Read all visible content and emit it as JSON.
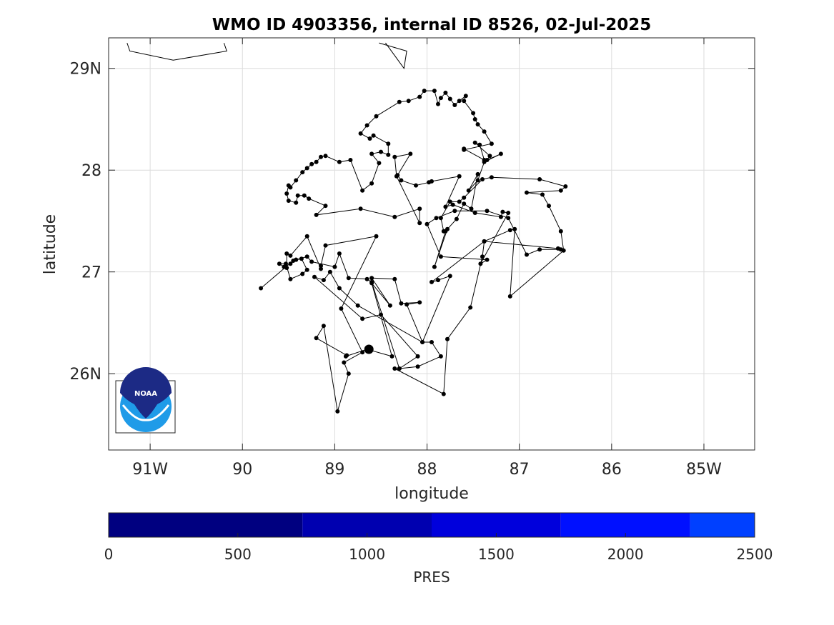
{
  "chart_data": {
    "type": "scatter",
    "title": "WMO ID 4903356, internal ID 8526, 02-Jul-2025",
    "xlabel": "longitude",
    "ylabel": "latitude",
    "xlim": [
      -91.45,
      -84.45
    ],
    "ylim": [
      25.25,
      29.3
    ],
    "grid": true,
    "x_ticks": [
      {
        "value": -91,
        "label": "91W"
      },
      {
        "value": -90,
        "label": "90"
      },
      {
        "value": -89,
        "label": "89"
      },
      {
        "value": -88,
        "label": "88"
      },
      {
        "value": -87,
        "label": "87"
      },
      {
        "value": -86,
        "label": "86"
      },
      {
        "value": -85,
        "label": "85W"
      }
    ],
    "y_ticks": [
      {
        "value": 26,
        "label": "26N"
      },
      {
        "value": 27,
        "label": "27"
      },
      {
        "value": 28,
        "label": "28"
      },
      {
        "value": 29,
        "label": "29N"
      }
    ],
    "coastlines": [
      [
        [
          -90.2,
          29.25
        ],
        [
          -90.17,
          29.17
        ],
        [
          -90.75,
          29.08
        ],
        [
          -91.22,
          29.17
        ],
        [
          -91.25,
          29.25
        ]
      ],
      [
        [
          -88.52,
          29.25
        ],
        [
          -88.22,
          29.17
        ],
        [
          -88.25,
          29.0
        ],
        [
          -88.45,
          29.25
        ]
      ]
    ],
    "series": [
      {
        "marker_color": "#000000",
        "points": [
          [
            -89.8,
            26.84
          ],
          [
            -89.45,
            27.11
          ],
          [
            -89.42,
            27.12
          ],
          [
            -89.36,
            27.13
          ],
          [
            -89.3,
            27.02
          ],
          [
            -89.35,
            26.98
          ],
          [
            -89.48,
            26.93
          ],
          [
            -89.53,
            27.08
          ],
          [
            -89.6,
            27.08
          ],
          [
            -89.55,
            27.05
          ],
          [
            -89.52,
            27.04
          ],
          [
            -89.52,
            27.18
          ],
          [
            -89.48,
            27.16
          ],
          [
            -89.3,
            27.35
          ],
          [
            -89.15,
            27.03
          ],
          [
            -89.15,
            27.06
          ],
          [
            -89.1,
            27.26
          ],
          [
            -88.55,
            27.35
          ],
          [
            -88.93,
            26.64
          ],
          [
            -88.7,
            26.21
          ],
          [
            -88.9,
            26.11
          ],
          [
            -88.85,
            26.0
          ],
          [
            -88.97,
            25.63
          ],
          [
            -89.12,
            26.47
          ],
          [
            -89.2,
            26.35
          ],
          [
            -88.87,
            26.18
          ],
          [
            -88.88,
            26.17
          ],
          [
            -88.65,
            26.24
          ],
          [
            -88.38,
            26.17
          ],
          [
            -88.6,
            26.89
          ],
          [
            -88.4,
            26.67
          ],
          [
            -88.6,
            26.94
          ],
          [
            -88.35,
            26.93
          ],
          [
            -88.28,
            26.69
          ],
          [
            -88.08,
            26.7
          ],
          [
            -88.22,
            26.68
          ],
          [
            -88.05,
            26.31
          ],
          [
            -87.95,
            26.31
          ],
          [
            -87.85,
            26.17
          ],
          [
            -88.1,
            26.07
          ],
          [
            -88.3,
            26.05
          ],
          [
            -88.35,
            26.05
          ],
          [
            -87.82,
            25.8
          ],
          [
            -87.78,
            26.34
          ],
          [
            -87.53,
            26.65
          ],
          [
            -87.4,
            27.15
          ],
          [
            -87.38,
            27.3
          ],
          [
            -87.1,
            27.41
          ],
          [
            -87.05,
            27.42
          ],
          [
            -87.1,
            26.76
          ],
          [
            -86.52,
            27.21
          ],
          [
            -86.55,
            27.4
          ],
          [
            -86.68,
            27.65
          ],
          [
            -86.75,
            27.76
          ],
          [
            -86.92,
            27.78
          ],
          [
            -86.55,
            27.8
          ],
          [
            -86.5,
            27.84
          ],
          [
            -86.78,
            27.91
          ],
          [
            -87.3,
            27.93
          ],
          [
            -87.4,
            27.91
          ],
          [
            -87.6,
            27.73
          ],
          [
            -87.65,
            27.69
          ],
          [
            -87.75,
            27.69
          ],
          [
            -87.85,
            27.53
          ],
          [
            -87.82,
            27.4
          ],
          [
            -87.78,
            27.42
          ],
          [
            -87.92,
            27.05
          ],
          [
            -87.8,
            27.4
          ],
          [
            -87.68,
            27.52
          ],
          [
            -87.6,
            27.67
          ],
          [
            -87.52,
            27.62
          ],
          [
            -87.45,
            27.96
          ],
          [
            -87.55,
            27.8
          ],
          [
            -87.45,
            27.9
          ],
          [
            -87.38,
            28.08
          ],
          [
            -87.2,
            28.16
          ],
          [
            -87.35,
            28.1
          ],
          [
            -87.32,
            28.14
          ],
          [
            -87.48,
            28.27
          ],
          [
            -87.43,
            28.25
          ],
          [
            -87.38,
            28.1
          ],
          [
            -87.6,
            28.21
          ],
          [
            -87.6,
            28.2
          ],
          [
            -87.3,
            28.26
          ],
          [
            -87.38,
            28.38
          ],
          [
            -87.45,
            28.45
          ],
          [
            -87.48,
            28.5
          ],
          [
            -87.5,
            28.56
          ],
          [
            -87.6,
            28.68
          ],
          [
            -87.58,
            28.73
          ],
          [
            -87.65,
            28.68
          ],
          [
            -87.7,
            28.64
          ],
          [
            -87.75,
            28.7
          ],
          [
            -87.8,
            28.76
          ],
          [
            -87.85,
            28.71
          ],
          [
            -87.88,
            28.65
          ],
          [
            -87.92,
            28.78
          ],
          [
            -88.03,
            28.78
          ],
          [
            -88.08,
            28.72
          ],
          [
            -88.2,
            28.68
          ],
          [
            -88.3,
            28.67
          ],
          [
            -88.55,
            28.53
          ],
          [
            -88.65,
            28.44
          ],
          [
            -88.72,
            28.36
          ],
          [
            -88.62,
            28.31
          ],
          [
            -88.58,
            28.34
          ],
          [
            -88.42,
            28.26
          ],
          [
            -88.42,
            28.15
          ],
          [
            -88.5,
            28.18
          ],
          [
            -88.6,
            28.16
          ],
          [
            -88.52,
            28.07
          ],
          [
            -88.6,
            27.87
          ],
          [
            -88.7,
            27.8
          ],
          [
            -88.83,
            28.1
          ],
          [
            -88.95,
            28.08
          ],
          [
            -89.1,
            28.14
          ],
          [
            -89.15,
            28.13
          ],
          [
            -89.2,
            28.08
          ],
          [
            -89.25,
            28.06
          ],
          [
            -89.3,
            28.02
          ],
          [
            -89.35,
            27.98
          ],
          [
            -89.42,
            27.9
          ],
          [
            -89.48,
            27.83
          ],
          [
            -89.5,
            27.85
          ],
          [
            -89.52,
            27.77
          ],
          [
            -89.5,
            27.7
          ],
          [
            -89.42,
            27.68
          ],
          [
            -89.4,
            27.75
          ],
          [
            -89.33,
            27.75
          ],
          [
            -89.28,
            27.72
          ],
          [
            -89.1,
            27.65
          ],
          [
            -89.2,
            27.56
          ],
          [
            -88.72,
            27.62
          ],
          [
            -88.35,
            27.54
          ],
          [
            -88.08,
            27.62
          ],
          [
            -88.08,
            27.48
          ],
          [
            -88.33,
            27.94
          ],
          [
            -88.35,
            28.13
          ],
          [
            -88.18,
            28.16
          ],
          [
            -88.32,
            27.95
          ],
          [
            -88.28,
            27.9
          ],
          [
            -88.12,
            27.85
          ],
          [
            -87.98,
            27.88
          ],
          [
            -87.95,
            27.89
          ],
          [
            -87.65,
            27.94
          ],
          [
            -87.8,
            27.64
          ],
          [
            -87.72,
            27.66
          ],
          [
            -87.48,
            27.58
          ],
          [
            -87.2,
            27.54
          ],
          [
            -87.18,
            27.59
          ],
          [
            -87.12,
            27.58
          ],
          [
            -87.42,
            27.08
          ],
          [
            -87.35,
            27.12
          ],
          [
            -87.85,
            27.15
          ],
          [
            -88.0,
            27.47
          ],
          [
            -87.9,
            27.53
          ],
          [
            -87.7,
            27.6
          ],
          [
            -87.35,
            27.6
          ],
          [
            -87.12,
            27.53
          ],
          [
            -86.92,
            27.17
          ],
          [
            -86.78,
            27.22
          ],
          [
            -86.55,
            27.22
          ],
          [
            -86.58,
            27.23
          ],
          [
            -87.38,
            27.3
          ],
          [
            -87.95,
            26.9
          ],
          [
            -87.88,
            26.92
          ],
          [
            -87.75,
            26.96
          ],
          [
            -88.05,
            26.31
          ],
          [
            -88.75,
            26.67
          ],
          [
            -88.95,
            26.84
          ],
          [
            -89.05,
            27.0
          ],
          [
            -89.12,
            26.92
          ],
          [
            -89.22,
            26.95
          ],
          [
            -88.7,
            26.54
          ],
          [
            -88.5,
            26.58
          ],
          [
            -88.1,
            26.17
          ],
          [
            -88.3,
            26.05
          ],
          [
            -88.6,
            26.9
          ],
          [
            -88.65,
            26.93
          ],
          [
            -88.85,
            26.94
          ],
          [
            -88.95,
            27.18
          ],
          [
            -89.0,
            27.05
          ],
          [
            -89.25,
            27.1
          ],
          [
            -89.3,
            27.15
          ],
          [
            -89.42,
            27.12
          ],
          [
            -89.48,
            27.08
          ]
        ]
      }
    ],
    "colorbar": {
      "label": "PRES",
      "range": [
        0,
        2500
      ],
      "ticks": [
        0,
        500,
        1000,
        1500,
        2000,
        2500
      ],
      "bands": [
        {
          "from": 0,
          "to": 750,
          "color": "#000080"
        },
        {
          "from": 750,
          "to": 1250,
          "color": "#0000b0"
        },
        {
          "from": 1250,
          "to": 1750,
          "color": "#0000dc"
        },
        {
          "from": 1750,
          "to": 2250,
          "color": "#0010ff"
        },
        {
          "from": 2250,
          "to": 2500,
          "color": "#0040ff"
        }
      ]
    }
  },
  "logo": {
    "text": "NOAA",
    "top_color": "#1c2a85",
    "bottom_color": "#1f9be8"
  }
}
